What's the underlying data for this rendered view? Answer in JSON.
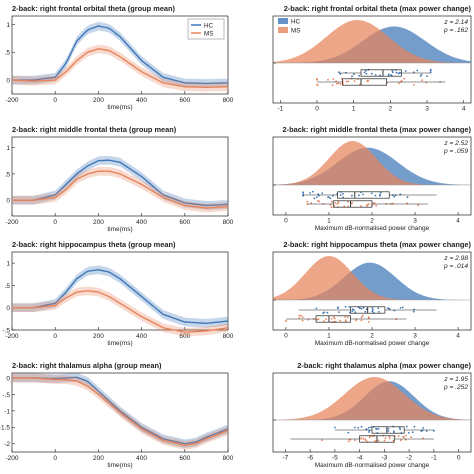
{
  "colors": {
    "hc": "#3f77b8",
    "ms": "#e8845c",
    "axis": "#222222"
  },
  "chart_data": [
    {
      "type": "line",
      "title": "2-back: right frontal orbital theta (group mean)",
      "xlabel": "time(ms)",
      "xlim": [
        -200,
        800
      ],
      "ylim": [
        -0.25,
        1.15
      ],
      "xticks": [
        -200,
        0,
        200,
        400,
        600,
        800
      ],
      "yticks": [
        0,
        0.5,
        1
      ],
      "legend": "top-right",
      "series": [
        {
          "name": "HC",
          "x": [
            -200,
            -100,
            0,
            50,
            100,
            150,
            200,
            250,
            300,
            400,
            500,
            600,
            700,
            800
          ],
          "y": [
            0,
            0,
            0.05,
            0.3,
            0.7,
            0.9,
            0.97,
            0.93,
            0.78,
            0.35,
            0.05,
            -0.05,
            -0.06,
            -0.05
          ]
        },
        {
          "name": "MS",
          "x": [
            -200,
            -100,
            0,
            50,
            100,
            150,
            200,
            250,
            300,
            400,
            500,
            600,
            700,
            800
          ],
          "y": [
            0,
            -0.02,
            0,
            0.15,
            0.35,
            0.5,
            0.56,
            0.53,
            0.42,
            0.15,
            -0.05,
            -0.12,
            -0.13,
            -0.12
          ]
        }
      ]
    },
    {
      "type": "line",
      "title": "2-back: right middle frontal theta (group mean)",
      "xlabel": "time(ms)",
      "xlim": [
        -200,
        800
      ],
      "ylim": [
        -0.3,
        1.2
      ],
      "xticks": [
        -200,
        0,
        200,
        400,
        600,
        800
      ],
      "yticks": [
        0,
        0.5,
        1
      ],
      "series": [
        {
          "name": "HC",
          "x": [
            -200,
            -100,
            0,
            50,
            100,
            150,
            200,
            250,
            300,
            400,
            500,
            600,
            700,
            800
          ],
          "y": [
            0,
            0,
            0.1,
            0.3,
            0.5,
            0.65,
            0.75,
            0.76,
            0.72,
            0.45,
            0.1,
            -0.05,
            -0.1,
            -0.08
          ]
        },
        {
          "name": "MS",
          "x": [
            -200,
            -100,
            0,
            50,
            100,
            150,
            200,
            250,
            300,
            400,
            500,
            600,
            700,
            800
          ],
          "y": [
            0,
            0,
            0.05,
            0.2,
            0.4,
            0.5,
            0.55,
            0.55,
            0.5,
            0.3,
            0.05,
            -0.1,
            -0.15,
            -0.12
          ]
        }
      ]
    },
    {
      "type": "line",
      "title": "2-back: right hippocampus theta (group mean)",
      "xlabel": "time(ms)",
      "xlim": [
        -200,
        800
      ],
      "ylim": [
        -0.5,
        1.25
      ],
      "xticks": [
        -200,
        0,
        200,
        400,
        600,
        800
      ],
      "yticks": [
        -0.5,
        0,
        0.5,
        1
      ],
      "series": [
        {
          "name": "HC",
          "x": [
            -200,
            -100,
            0,
            50,
            100,
            150,
            200,
            250,
            300,
            400,
            500,
            600,
            700,
            800
          ],
          "y": [
            0,
            0,
            0.1,
            0.35,
            0.65,
            0.82,
            0.85,
            0.8,
            0.65,
            0.25,
            -0.15,
            -0.32,
            -0.35,
            -0.3
          ]
        },
        {
          "name": "MS",
          "x": [
            -200,
            -100,
            0,
            50,
            100,
            150,
            200,
            250,
            300,
            400,
            500,
            600,
            700,
            800
          ],
          "y": [
            0,
            0,
            0.05,
            0.22,
            0.35,
            0.38,
            0.35,
            0.25,
            0.1,
            -0.2,
            -0.45,
            -0.55,
            -0.52,
            -0.45
          ]
        }
      ]
    },
    {
      "type": "line",
      "title": "2-back: right thalamus alpha (group mean)",
      "xlabel": "time(ms)",
      "xlim": [
        -200,
        800
      ],
      "ylim": [
        -2.25,
        0.15
      ],
      "xticks": [
        -200,
        0,
        200,
        400,
        600,
        800
      ],
      "yticks": [
        -2,
        -1.5,
        -1,
        -0.5,
        0
      ],
      "series": [
        {
          "name": "HC",
          "x": [
            -200,
            -100,
            0,
            50,
            100,
            150,
            200,
            300,
            400,
            500,
            600,
            650,
            700,
            800
          ],
          "y": [
            0,
            0,
            -0.02,
            0,
            0.02,
            -0.1,
            -0.4,
            -1.0,
            -1.5,
            -1.85,
            -2.0,
            -1.95,
            -1.8,
            -1.55
          ]
        },
        {
          "name": "MS",
          "x": [
            -200,
            -100,
            0,
            50,
            100,
            150,
            200,
            300,
            400,
            500,
            600,
            650,
            700,
            800
          ],
          "y": [
            0,
            0,
            -0.05,
            -0.05,
            -0.1,
            -0.25,
            -0.5,
            -1.05,
            -1.55,
            -1.9,
            -2.05,
            -2.0,
            -1.85,
            -1.6
          ]
        }
      ]
    },
    {
      "type": "area",
      "title": "2-back: right frontal orbital theta (max power change)",
      "xlabel": "",
      "xlim": [
        -1.2,
        4.2
      ],
      "xticks": [
        -1,
        0,
        1,
        2,
        3,
        4
      ],
      "stats": [
        "z = 2.14",
        "p = .162"
      ],
      "series": [
        {
          "name": "HC",
          "peak": 2.1,
          "sd": 0.85,
          "height": 0.85,
          "box": [
            0.6,
            1.2,
            1.8,
            2.3,
            3.1
          ]
        },
        {
          "name": "MS",
          "peak": 1.1,
          "sd": 0.85,
          "height": 1.0,
          "box": [
            0.0,
            0.7,
            1.2,
            1.9,
            3.5
          ]
        }
      ]
    },
    {
      "type": "area",
      "title": "2-back: right middle frontal theta (max power change)",
      "xlabel": "Maximum dB-normalised power change",
      "xlim": [
        -0.3,
        4.3
      ],
      "xticks": [
        0,
        1,
        2,
        3,
        4
      ],
      "stats": [
        "z = 2.52",
        "p = .059"
      ],
      "series": [
        {
          "name": "HC",
          "peak": 1.9,
          "sd": 0.7,
          "height": 0.85,
          "box": [
            0.4,
            1.2,
            1.6,
            2.4,
            3.5
          ]
        },
        {
          "name": "MS",
          "peak": 1.55,
          "sd": 0.55,
          "height": 1.0,
          "box": [
            0.5,
            1.1,
            1.5,
            2.0,
            3.3
          ]
        }
      ]
    },
    {
      "type": "area",
      "title": "2-back: right hippocampus theta (max power change)",
      "xlabel": "Maximum dB-normalised power change",
      "xlim": [
        -0.3,
        4.3
      ],
      "xticks": [
        0,
        1,
        2,
        3,
        4
      ],
      "stats": [
        "z = 2.98",
        "p = .014"
      ],
      "series": [
        {
          "name": "HC",
          "peak": 1.95,
          "sd": 0.6,
          "height": 0.85,
          "box": [
            0.3,
            1.5,
            1.9,
            2.3,
            3.5
          ]
        },
        {
          "name": "MS",
          "peak": 1.0,
          "sd": 0.55,
          "height": 1.0,
          "box": [
            0.0,
            0.7,
            1.0,
            1.5,
            2.8
          ]
        }
      ]
    },
    {
      "type": "area",
      "title": "2-back: right thalamus alpha (max power change)",
      "xlabel": "Maximum dB-normalised power change",
      "xlim": [
        -7.5,
        0.5
      ],
      "xticks": [
        -7,
        -6,
        -5,
        -4,
        -3,
        -2,
        -1,
        0
      ],
      "stats": [
        "z = 1.95",
        "p = .252"
      ],
      "series": [
        {
          "name": "HC",
          "peak": -2.8,
          "sd": 1.0,
          "height": 0.9,
          "box": [
            -5.0,
            -3.5,
            -2.9,
            -2.2,
            -1.0
          ]
        },
        {
          "name": "MS",
          "peak": -3.4,
          "sd": 1.2,
          "height": 1.0,
          "box": [
            -6.8,
            -4.0,
            -3.3,
            -2.6,
            -1.0
          ]
        }
      ]
    }
  ]
}
